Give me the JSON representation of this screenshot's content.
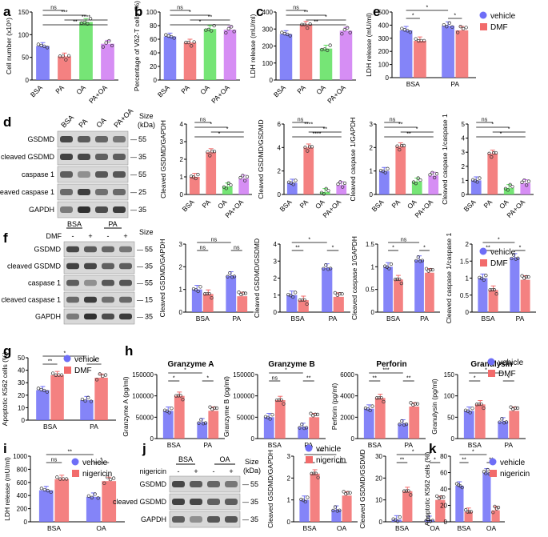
{
  "colors": {
    "blue": "#6e6ef7",
    "red": "#f26b6b",
    "green": "#5ee05e",
    "purple": "#cf7af2",
    "axis": "#000000",
    "blot_bg": "#ffffff"
  },
  "panel_labels": [
    "a",
    "b",
    "c",
    "e",
    "d",
    "f",
    "g",
    "h",
    "i",
    "j",
    "k"
  ],
  "blot_d": {
    "size_label": "Size\n(kDa)",
    "lanes": [
      "BSA",
      "PA",
      "OA",
      "PA+OA"
    ],
    "rows": [
      {
        "label": "GSDMD",
        "size": "55"
      },
      {
        "label": "cleaved GSDMD",
        "size": "35"
      },
      {
        "label": "caspase 1",
        "size": "55"
      },
      {
        "label": "cleaved caspase 1",
        "size": "25"
      },
      {
        "label": "GAPDH",
        "size": "35"
      }
    ]
  },
  "blot_f": {
    "group_labels": [
      "BSA",
      "PA"
    ],
    "treatment_label": "DMF",
    "signs": [
      "-",
      "+",
      "-",
      "+"
    ],
    "rows": [
      {
        "label": "GSDMD",
        "size": "55"
      },
      {
        "label": "cleaved GSDMD",
        "size": "35"
      },
      {
        "label": "caspase 1",
        "size": "55"
      },
      {
        "label": "cleaved caspase 1",
        "size": "15"
      },
      {
        "label": "GAPDH",
        "size": "35"
      }
    ]
  },
  "blot_j": {
    "group_labels": [
      "BSA",
      "OA"
    ],
    "treatment_label": "nigericin",
    "signs": [
      "-",
      "+",
      "-",
      "+"
    ],
    "rows": [
      {
        "label": "GSDMD",
        "size": "55"
      },
      {
        "label": "cleaved GSDMD",
        "size": "35"
      },
      {
        "label": "GAPDH",
        "size": "35"
      }
    ]
  },
  "legends": {
    "vehicle_dmf": [
      "vehicle",
      "DMF"
    ],
    "vehicle_nigericin": [
      "vehicle",
      "nigericin"
    ]
  },
  "chart_data": [
    {
      "id": "a",
      "type": "bar",
      "ylabel": "Cell number (x10⁶)",
      "ylim": [
        0,
        150
      ],
      "yticks": [
        0,
        50,
        100,
        150
      ],
      "categories": [
        "BSA",
        "PA",
        "OA",
        "PA+OA"
      ],
      "values": [
        75,
        52,
        128,
        80
      ],
      "colors": [
        "blue",
        "red",
        "green",
        "purple"
      ],
      "sig": [
        "**",
        "****",
        "***",
        "ns"
      ]
    },
    {
      "id": "b",
      "type": "bar",
      "ylabel": "Percentage of Vδ2-T cells (%)",
      "ylim": [
        0,
        100
      ],
      "yticks": [
        0,
        20,
        40,
        60,
        80,
        100
      ],
      "categories": [
        "BSA",
        "PA",
        "OA",
        "PA+OA"
      ],
      "values": [
        64,
        55,
        75,
        74
      ],
      "colors": [
        "blue",
        "red",
        "green",
        "purple"
      ],
      "sig": [
        "*",
        "**",
        "*",
        "ns"
      ]
    },
    {
      "id": "c",
      "type": "bar",
      "ylabel": "LDH release (mU/ml)",
      "ylim": [
        0,
        400
      ],
      "yticks": [
        0,
        100,
        200,
        300,
        400
      ],
      "categories": [
        "BSA",
        "PA",
        "OA",
        "PA+OA"
      ],
      "values": [
        270,
        325,
        185,
        290
      ],
      "colors": [
        "blue",
        "red",
        "green",
        "purple"
      ],
      "sig": [
        "**",
        "*",
        "**",
        "ns"
      ]
    },
    {
      "id": "e",
      "type": "bar",
      "ylabel": "LDH release (mU/ml)",
      "ylim": [
        0,
        500
      ],
      "yticks": [
        0,
        100,
        200,
        300,
        400,
        500
      ],
      "groups": [
        "BSA",
        "PA"
      ],
      "series": [
        {
          "name": "vehicle",
          "values": [
            360,
            395
          ]
        },
        {
          "name": "DMF",
          "values": [
            280,
            360
          ]
        }
      ],
      "sig": [
        "*",
        "*",
        "*"
      ]
    },
    {
      "id": "d1",
      "type": "bar",
      "ylabel": "Cleaved GSDMD/GAPDH",
      "ylim": [
        0,
        4
      ],
      "yticks": [
        0,
        1,
        2,
        3,
        4
      ],
      "categories": [
        "BSA",
        "PA",
        "OA",
        "PA+OA"
      ],
      "values": [
        1.0,
        2.4,
        0.45,
        0.9
      ],
      "colors": [
        "red",
        "red",
        "green",
        "purple"
      ],
      "sig": [
        "*",
        "*",
        "*",
        "ns"
      ]
    },
    {
      "id": "d2",
      "type": "bar",
      "ylabel": "Cleaved GSDMD/GSDMD",
      "ylim": [
        0,
        6
      ],
      "yticks": [
        0,
        2,
        4,
        6
      ],
      "categories": [
        "BSA",
        "PA",
        "OA",
        "PA+OA"
      ],
      "values": [
        1.0,
        4.0,
        0.2,
        0.8
      ],
      "colors": [
        "blue",
        "red",
        "green",
        "purple"
      ],
      "sig": [
        "****",
        "**",
        "****",
        "ns"
      ]
    },
    {
      "id": "d3",
      "type": "bar",
      "ylabel": "Cleaved caspase 1/GAPDH",
      "ylim": [
        0,
        3
      ],
      "yticks": [
        0,
        1,
        2,
        3
      ],
      "categories": [
        "BSA",
        "PA",
        "OA",
        "PA+OA"
      ],
      "values": [
        1.0,
        2.05,
        0.55,
        0.8
      ],
      "colors": [
        "blue",
        "red",
        "green",
        "purple"
      ],
      "sig": [
        "**",
        "*",
        "**",
        "ns"
      ]
    },
    {
      "id": "d4",
      "type": "bar",
      "ylabel": "Cleaved caspase 1/caspase 1",
      "ylim": [
        0,
        5
      ],
      "yticks": [
        0,
        1,
        2,
        3,
        4,
        5
      ],
      "categories": [
        "BSA",
        "PA",
        "OA",
        "PA+OA"
      ],
      "values": [
        1.0,
        2.9,
        0.45,
        0.8
      ],
      "colors": [
        "blue",
        "red",
        "green",
        "purple"
      ],
      "sig": [
        "*",
        "*",
        "*",
        "ns"
      ]
    },
    {
      "id": "f1",
      "type": "bar",
      "ylabel": "Cleaved GSDMD/GAPDH",
      "ylim": [
        0,
        3
      ],
      "yticks": [
        0,
        1,
        2,
        3
      ],
      "groups": [
        "BSA",
        "PA"
      ],
      "series": [
        {
          "name": "vehicle",
          "values": [
            1.0,
            1.6
          ]
        },
        {
          "name": "DMF",
          "values": [
            0.8,
            0.7
          ]
        }
      ],
      "sig": [
        "ns",
        "ns",
        "ns"
      ]
    },
    {
      "id": "f2",
      "type": "bar",
      "ylabel": "Cleaved GSDMD/GSDMD",
      "ylim": [
        0,
        4
      ],
      "yticks": [
        0,
        1,
        2,
        3,
        4
      ],
      "groups": [
        "BSA",
        "PA"
      ],
      "series": [
        {
          "name": "vehicle",
          "values": [
            1.0,
            2.6
          ]
        },
        {
          "name": "DMF",
          "values": [
            0.7,
            0.9
          ]
        }
      ],
      "sig": [
        "**",
        "*",
        "*"
      ]
    },
    {
      "id": "f3",
      "type": "bar",
      "ylabel": "Cleaved caspase 1/GAPDH",
      "ylim": [
        0,
        1.5
      ],
      "yticks": [
        0,
        0.5,
        1.0,
        1.5
      ],
      "groups": [
        "BSA",
        "PA"
      ],
      "series": [
        {
          "name": "vehicle",
          "values": [
            1.0,
            1.15
          ]
        },
        {
          "name": "DMF",
          "values": [
            0.72,
            0.87
          ]
        }
      ],
      "sig": [
        "*",
        "ns",
        "*"
      ]
    },
    {
      "id": "f4",
      "type": "bar",
      "ylabel": "Cleaved caspase 1/caspase 1",
      "ylim": [
        0,
        2.0
      ],
      "yticks": [
        0,
        0.5,
        1.0,
        1.5,
        2.0
      ],
      "groups": [
        "BSA",
        "PA"
      ],
      "series": [
        {
          "name": "vehicle",
          "values": [
            1.0,
            1.6
          ]
        },
        {
          "name": "DMF",
          "values": [
            0.65,
            0.95
          ]
        }
      ],
      "sig": [
        "**",
        "*",
        "*"
      ]
    },
    {
      "id": "g",
      "type": "bar",
      "ylabel": "Apoptotic K562 cells (%)",
      "ylim": [
        0,
        50
      ],
      "yticks": [
        0,
        10,
        20,
        30,
        40,
        50
      ],
      "groups": [
        "BSA",
        "PA"
      ],
      "series": [
        {
          "name": "vehicle",
          "values": [
            24,
            16
          ]
        },
        {
          "name": "DMF",
          "values": [
            36,
            34
          ]
        }
      ],
      "sig": [
        "**",
        "*",
        "**"
      ]
    },
    {
      "id": "h1",
      "type": "bar",
      "title": "Granzyme A",
      "ylabel": "Granzyme A (pg/ml)",
      "ylim": [
        0,
        150000
      ],
      "yticks": [
        0,
        50000,
        100000,
        150000
      ],
      "groups": [
        "BSA",
        "PA"
      ],
      "series": [
        {
          "name": "vehicle",
          "values": [
            65000,
            38000
          ]
        },
        {
          "name": "DMF",
          "values": [
            100000,
            65000
          ]
        }
      ],
      "sig": [
        "*",
        "*",
        "*"
      ]
    },
    {
      "id": "h2",
      "type": "bar",
      "title": "Granzyme B",
      "ylabel": "Granzyme B (pg/ml)",
      "ylim": [
        0,
        150000
      ],
      "yticks": [
        0,
        50000,
        100000,
        150000
      ],
      "groups": [
        "BSA",
        "PA"
      ],
      "series": [
        {
          "name": "vehicle",
          "values": [
            50000,
            27000
          ]
        },
        {
          "name": "DMF",
          "values": [
            90000,
            50000
          ]
        }
      ],
      "sig": [
        "ns",
        "*",
        "**"
      ]
    },
    {
      "id": "h3",
      "type": "bar",
      "title": "Perforin",
      "ylabel": "Perforin (pg/ml)",
      "ylim": [
        0,
        6000
      ],
      "yticks": [
        0,
        2000,
        4000,
        6000
      ],
      "groups": [
        "BSA",
        "PA"
      ],
      "series": [
        {
          "name": "vehicle",
          "values": [
            2800,
            1400
          ]
        },
        {
          "name": "DMF",
          "values": [
            3800,
            3000
          ]
        }
      ],
      "sig": [
        "**",
        "***",
        "**"
      ]
    },
    {
      "id": "h4",
      "type": "bar",
      "title": "Granulysin",
      "ylabel": "Granulysin (pg/ml)",
      "ylim": [
        0,
        150
      ],
      "yticks": [
        0,
        50,
        100,
        150
      ],
      "groups": [
        "BSA",
        "PA"
      ],
      "series": [
        {
          "name": "vehicle",
          "values": [
            65,
            40
          ]
        },
        {
          "name": "DMF",
          "values": [
            80,
            65
          ]
        }
      ],
      "sig": [
        "*",
        "*",
        "*"
      ]
    },
    {
      "id": "i",
      "type": "bar",
      "ylabel": "LDH release (mU/ml)",
      "ylim": [
        0,
        1000
      ],
      "yticks": [
        0,
        200,
        400,
        600,
        800,
        1000
      ],
      "groups": [
        "BSA",
        "OA"
      ],
      "series": [
        {
          "name": "vehicle",
          "values": [
            480,
            380
          ]
        },
        {
          "name": "nigericin",
          "values": [
            650,
            620
          ]
        }
      ],
      "sig": [
        "ns",
        "**",
        "*"
      ]
    },
    {
      "id": "j1",
      "type": "bar",
      "ylabel": "Cleaved GSDMD/GAPDH",
      "ylim": [
        0,
        3
      ],
      "yticks": [
        0,
        1,
        2,
        3
      ],
      "groups": [
        "BSA",
        "OA"
      ],
      "series": [
        {
          "name": "vehicle",
          "values": [
            1.0,
            0.55
          ]
        },
        {
          "name": "nigericin",
          "values": [
            2.2,
            1.2
          ]
        }
      ],
      "sig": [
        "*",
        "***",
        "*"
      ]
    },
    {
      "id": "j2",
      "type": "bar",
      "ylabel": "Cleaved GSDMD/GSDMD",
      "ylim": [
        0,
        30
      ],
      "yticks": [
        0,
        10,
        20,
        30
      ],
      "groups": [
        "BSA",
        "OA"
      ],
      "series": [
        {
          "name": "vehicle",
          "values": [
            1.0,
            0.8
          ]
        },
        {
          "name": "nigericin",
          "values": [
            14,
            10
          ]
        }
      ],
      "sig": [
        "**",
        "*",
        "*"
      ]
    },
    {
      "id": "k",
      "type": "bar",
      "ylabel": "Apoptotic K562 cells (%)",
      "ylim": [
        0,
        80
      ],
      "yticks": [
        0,
        20,
        40,
        60,
        80
      ],
      "groups": [
        "BSA",
        "OA"
      ],
      "series": [
        {
          "name": "vehicle",
          "values": [
            44,
            60
          ]
        },
        {
          "name": "nigericin",
          "values": [
            12,
            14
          ]
        }
      ],
      "sig": [
        "**",
        "*",
        "**"
      ]
    }
  ]
}
